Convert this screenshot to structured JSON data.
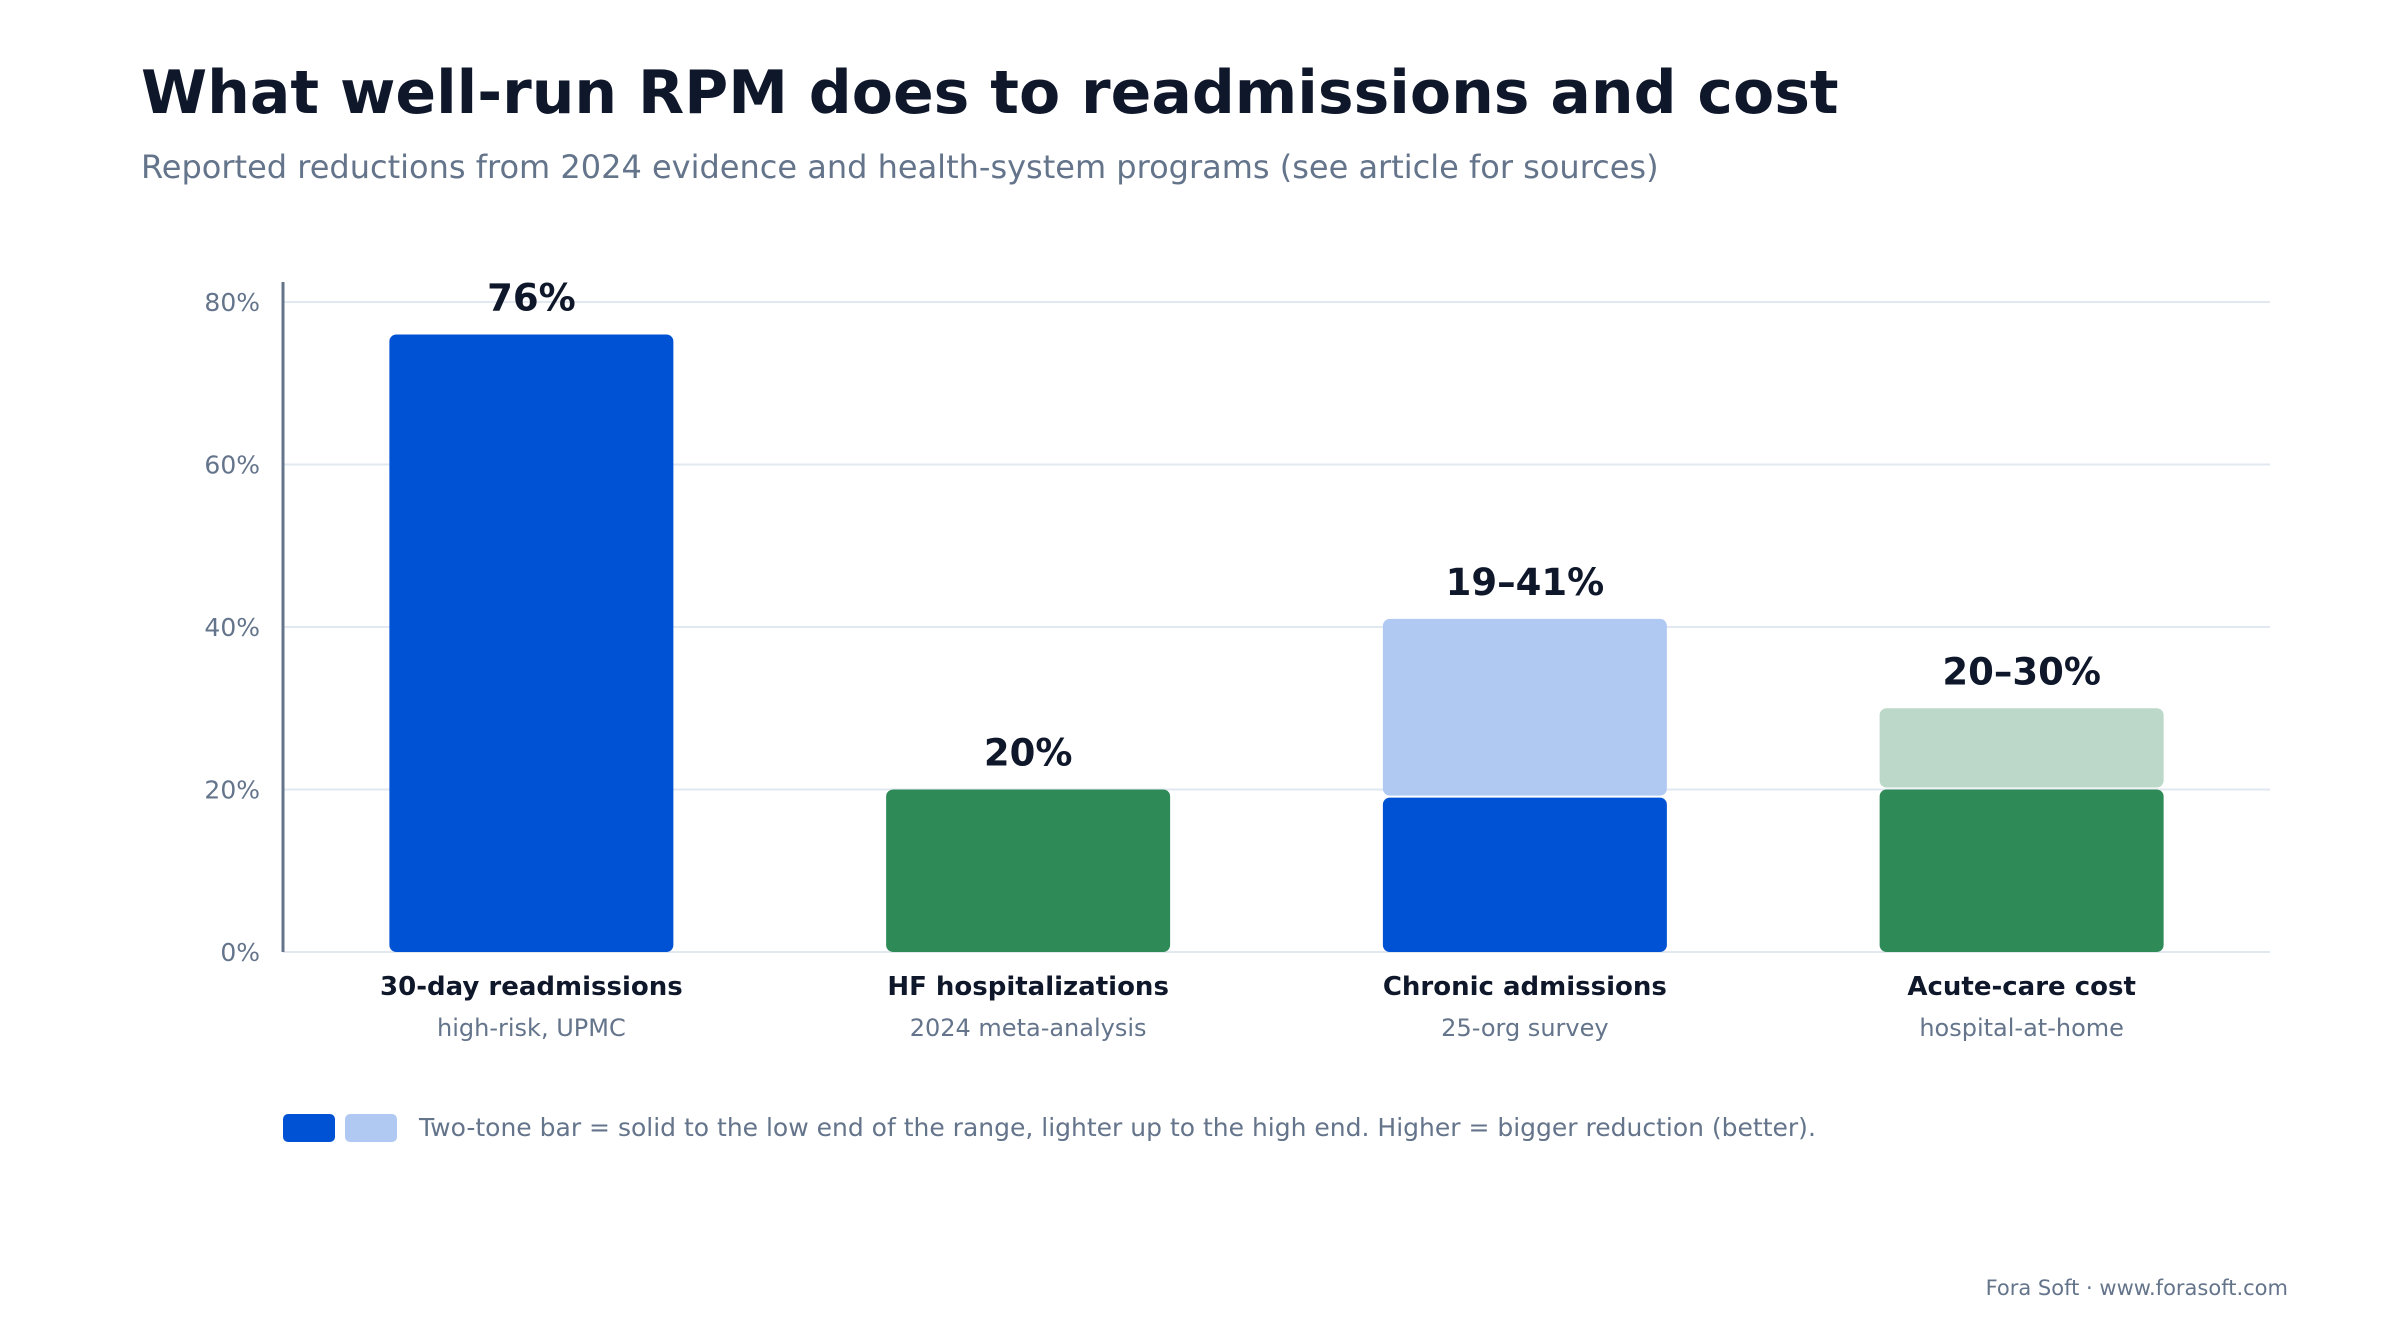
{
  "title": "What well-run RPM does to readmissions and cost",
  "subtitle": "Reported reductions from 2024 evidence and health-system programs (see article for sources)",
  "legend_text": "Two-tone bar = solid to the low end of the range, lighter up to the high end. Higher = bigger reduction (better).",
  "footer": "Fora Soft · www.forasoft.com",
  "colors": {
    "blue": "#0052d4",
    "blue_light": "#b0c9f2",
    "green": "#2e8b57",
    "green_light": "#bcd8c8"
  },
  "chart_data": {
    "type": "bar",
    "ylim": [
      0,
      80
    ],
    "yticks": [
      0,
      20,
      40,
      60,
      80
    ],
    "ytick_labels": [
      "0%",
      "20%",
      "40%",
      "60%",
      "80%"
    ],
    "grid": true,
    "categories": [
      {
        "label": "30-day readmissions",
        "sublabel": "high-risk, UPMC",
        "low": 76,
        "high": 76,
        "value_label": "76%",
        "color": "blue"
      },
      {
        "label": "HF hospitalizations",
        "sublabel": "2024 meta-analysis",
        "low": 20,
        "high": 20,
        "value_label": "20%",
        "color": "green"
      },
      {
        "label": "Chronic admissions",
        "sublabel": "25-org survey",
        "low": 19,
        "high": 41,
        "value_label": "19–41%",
        "color": "blue"
      },
      {
        "label": "Acute-care cost",
        "sublabel": "hospital-at-home",
        "low": 20,
        "high": 30,
        "value_label": "20–30%",
        "color": "green"
      }
    ]
  }
}
